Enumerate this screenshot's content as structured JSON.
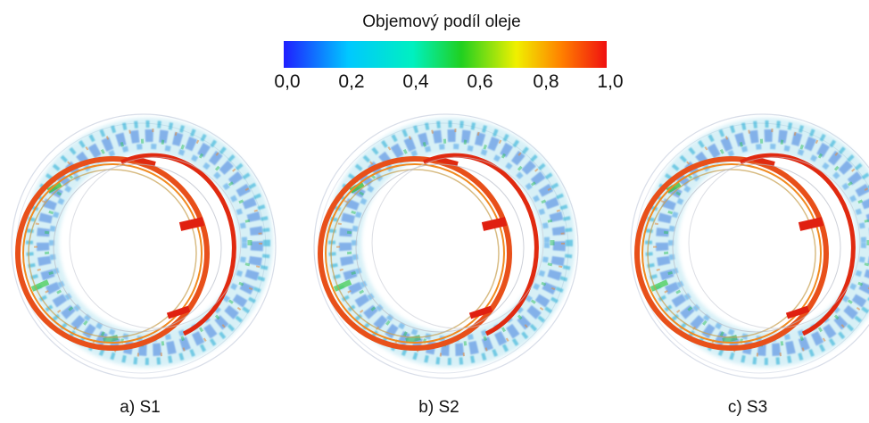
{
  "legend": {
    "title": "Objemový podíl oleje",
    "ticks": [
      "0,0",
      "0,2",
      "0,4",
      "0,6",
      "0,8",
      "1,0"
    ],
    "colorscale": [
      "#1f1fff",
      "#00c8ff",
      "#00f0c0",
      "#20d020",
      "#f0f000",
      "#ff8000",
      "#f01010"
    ]
  },
  "panels": [
    {
      "caption": "a) S1"
    },
    {
      "caption": "b) S2"
    },
    {
      "caption": "c) S3"
    }
  ]
}
